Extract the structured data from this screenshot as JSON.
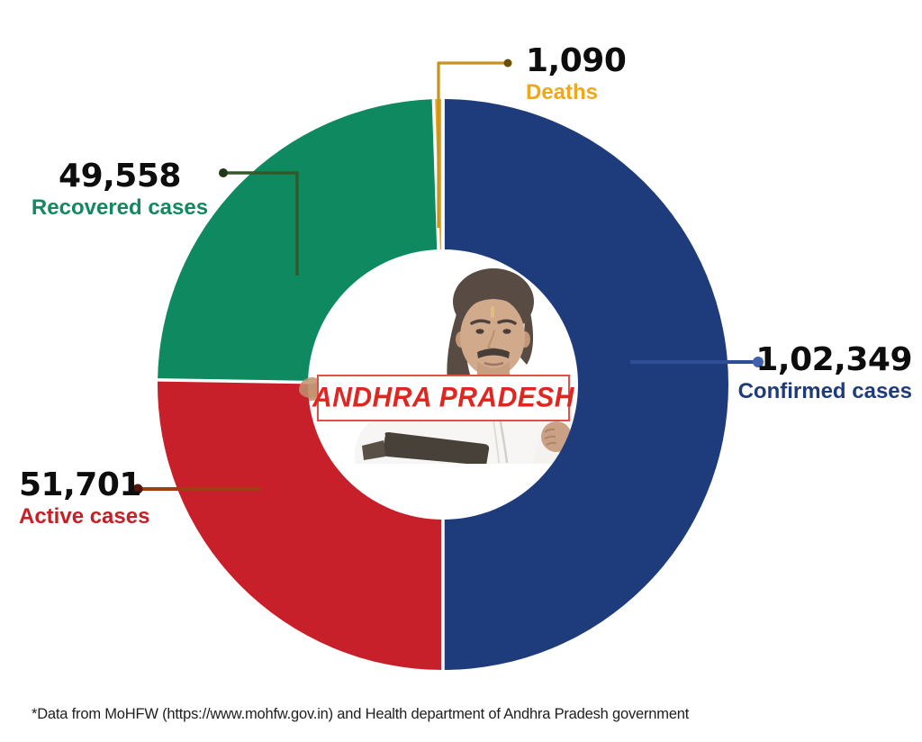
{
  "chart_data": {
    "type": "pie",
    "subtype": "donut",
    "title": "ANDHRA PRADESH",
    "segments": [
      {
        "label": "Confirmed cases",
        "display_value": "1,02,349",
        "value": 102349,
        "color": "#1E3C7C",
        "label_color": "#1E3C7C"
      },
      {
        "label": "Active cases",
        "display_value": "51,701",
        "value": 51701,
        "color": "#C8202A",
        "label_color": "#C32127"
      },
      {
        "label": "Recovered cases",
        "display_value": "49,558",
        "value": 49558,
        "color": "#0F8A60",
        "label_color": "#12895E"
      },
      {
        "label": "Deaths",
        "display_value": "1,090",
        "value": 1090,
        "color": "#F0A81D",
        "label_color": "#EFA71E"
      }
    ],
    "value_color": "#0D0D0D"
  },
  "leaders": {
    "confirmed": {
      "line": "#2F4E96",
      "dot": "#4160AE"
    },
    "active": {
      "line": "#A23D13",
      "dot": "#541409"
    },
    "recovered": {
      "line": "#33582A",
      "dot": "#1E3818"
    },
    "deaths": {
      "line": "#C8941B",
      "dot": "#6B4E00"
    }
  },
  "footer": {
    "text": "*Data from MoHFW (https://www.mohfw.gov.in) and Health department of Andhra Pradesh government"
  }
}
